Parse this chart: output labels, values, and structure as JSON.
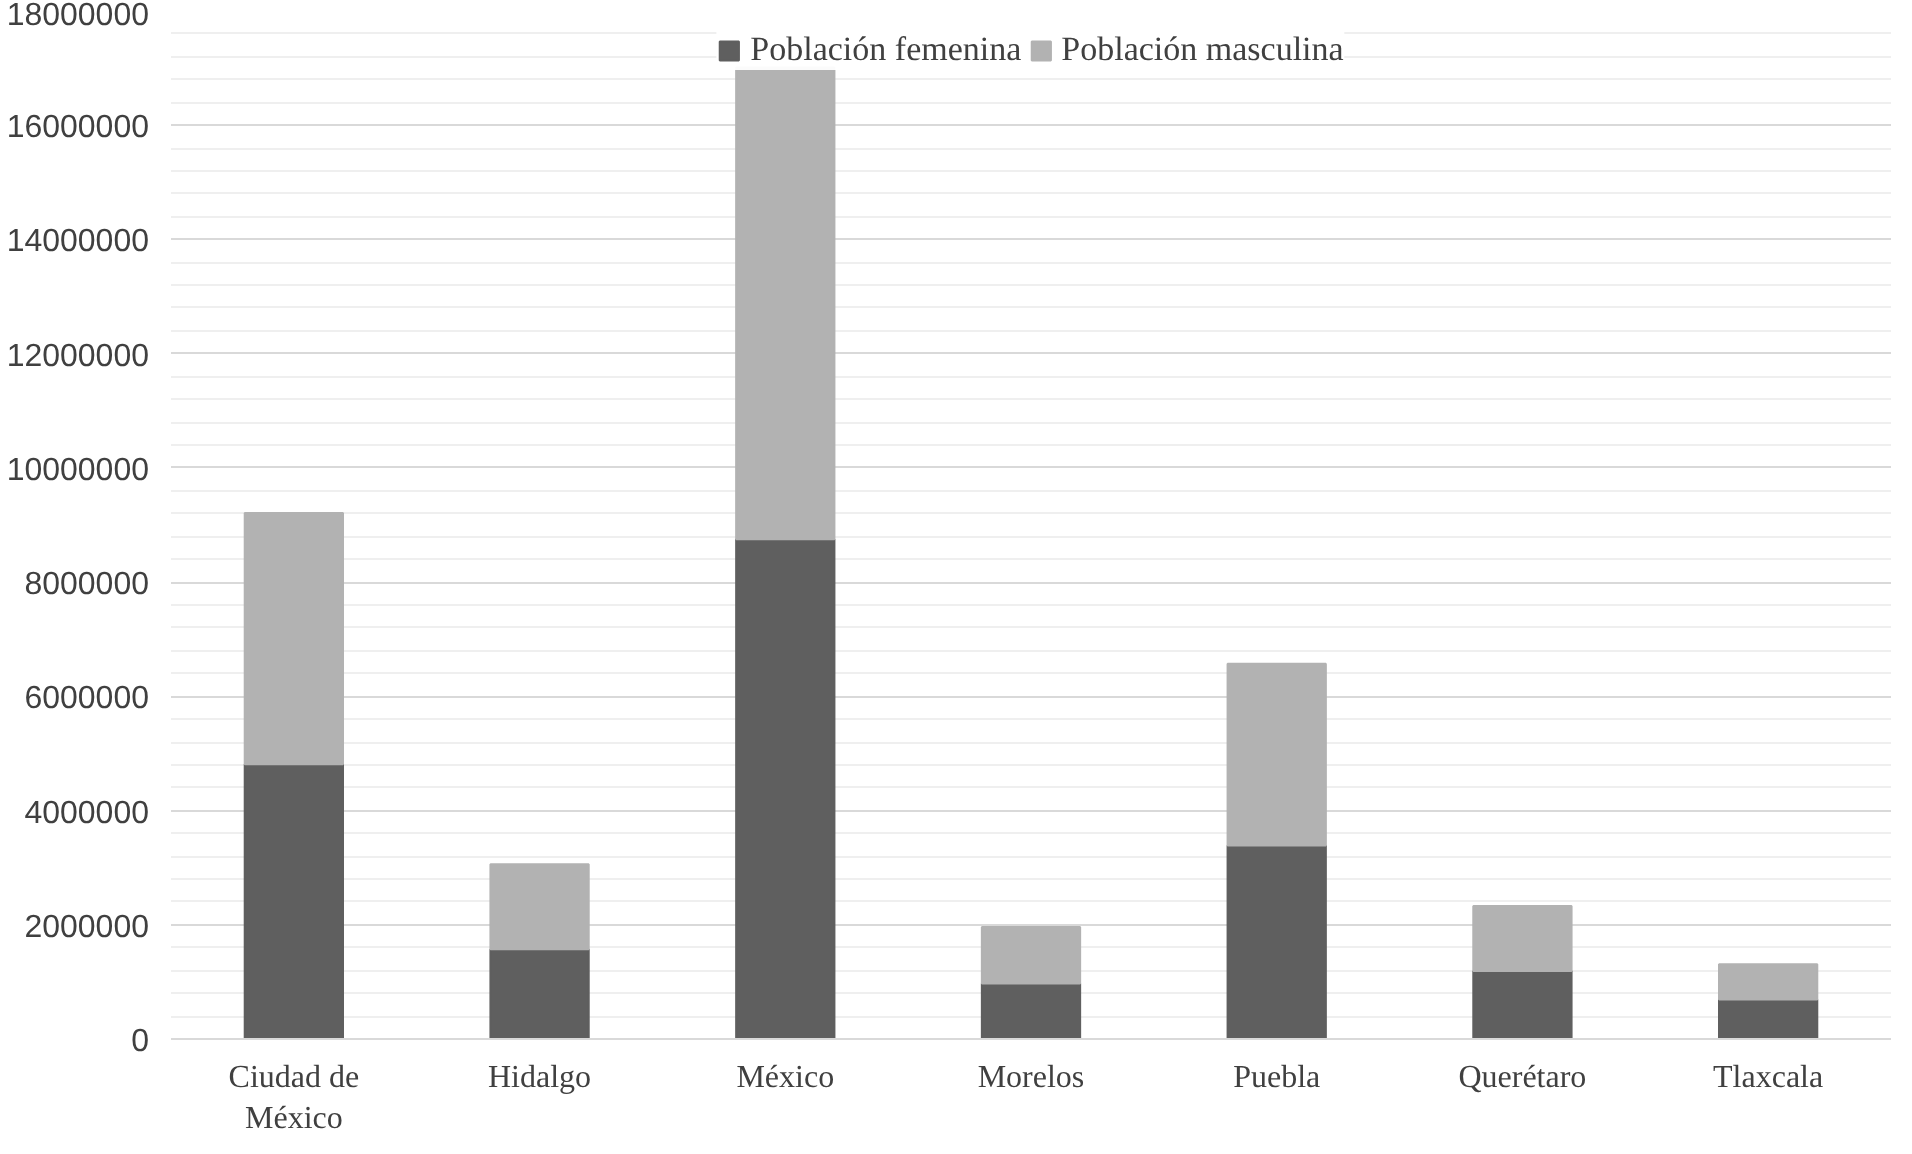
{
  "chart_data": {
    "type": "bar",
    "stacked": true,
    "categories": [
      "Ciudad de México",
      "Hidalgo",
      "México",
      "Morelos",
      "Puebla",
      "Querétaro",
      "Tlaxcala"
    ],
    "series": [
      {
        "name": "Población femenina",
        "color": "#5f5f5f",
        "values": [
          4810000,
          1570000,
          8750000,
          970000,
          3390000,
          1190000,
          690000
        ]
      },
      {
        "name": "Población masculina",
        "color": "#b2b2b2",
        "values": [
          4400000,
          1490000,
          8260000,
          990000,
          3180000,
          1140000,
          620000
        ]
      }
    ],
    "ylim": [
      0,
      18000000
    ],
    "yticks": [
      0,
      2000000,
      4000000,
      6000000,
      8000000,
      10000000,
      12000000,
      14000000,
      16000000,
      18000000
    ],
    "grid": "y",
    "legend": "top"
  }
}
